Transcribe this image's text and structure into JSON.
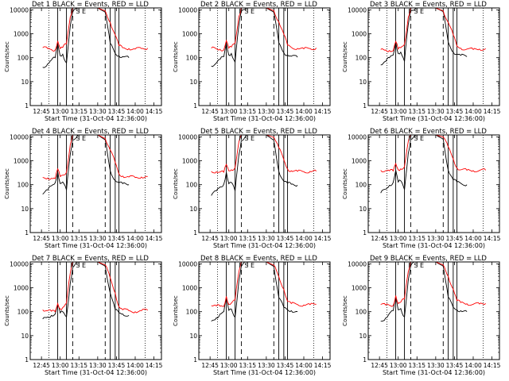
{
  "colors": {
    "events": "#000000",
    "lld": "#ff0000",
    "frame": "#000000"
  },
  "shared": {
    "ylabel": "Counts/sec",
    "xlabel": "Start Time (31-Oct-04 12:36:00)",
    "x_tick_labels": [
      "12:45",
      "13:00",
      "13:15",
      "13:30",
      "13:45",
      "14:00",
      "14:15"
    ],
    "y_tick_labels": [
      "1",
      "10",
      "100",
      "1000",
      "10000"
    ],
    "marker_letters": "F S E"
  },
  "chart_data": [
    {
      "type": "line",
      "scale_y": "log",
      "grid": false,
      "title": "Det 1 BLACK = Events, RED = LLD",
      "x_range": [
        "12:36",
        "14:21"
      ],
      "ylim": [
        1,
        12000
      ],
      "x": [
        "12:46",
        "12:50",
        "12:53",
        "12:56",
        "12:58",
        "13:00",
        "13:02",
        "13:05",
        "13:08",
        "13:10",
        "13:14",
        "13:20",
        "13:30",
        "13:36",
        "13:40",
        "13:44",
        "13:47",
        "13:50",
        "13:55",
        "14:00",
        "14:05",
        "14:10"
      ],
      "series": [
        {
          "name": "Events",
          "values": [
            40,
            55,
            80,
            100,
            380,
            120,
            140,
            60,
            2000,
            8000,
            12000,
            12000,
            12000,
            8000,
            400,
            150,
            120,
            110,
            100,
            null,
            null,
            null
          ]
        },
        {
          "name": "LLD",
          "values": [
            260,
            240,
            220,
            210,
            500,
            240,
            270,
            380,
            5000,
            12000,
            12000,
            12000,
            12000,
            9000,
            3000,
            900,
            320,
            260,
            240,
            230,
            240,
            250
          ]
        }
      ],
      "vlines_solid": [
        "12:58",
        "13:05",
        "13:40",
        "13:44",
        "13:47"
      ],
      "vlines_dashed": [
        "13:10",
        "13:36"
      ],
      "vlines_dotted": [
        "12:51",
        "14:08"
      ]
    },
    {
      "type": "line",
      "scale_y": "log",
      "grid": false,
      "title": "Det 2 BLACK = Events, RED = LLD",
      "x_range": [
        "12:36",
        "14:21"
      ],
      "ylim": [
        1,
        12000
      ],
      "x": [
        "12:46",
        "12:50",
        "12:53",
        "12:56",
        "12:58",
        "13:00",
        "13:02",
        "13:05",
        "13:08",
        "13:10",
        "13:14",
        "13:20",
        "13:30",
        "13:36",
        "13:40",
        "13:44",
        "13:47",
        "13:50",
        "13:55",
        "14:00",
        "14:05",
        "14:10"
      ],
      "series": [
        {
          "name": "Events",
          "values": [
            45,
            60,
            85,
            110,
            420,
            130,
            150,
            65,
            2200,
            8500,
            12000,
            12000,
            12000,
            8000,
            420,
            160,
            130,
            115,
            105,
            null,
            null,
            null
          ]
        },
        {
          "name": "LLD",
          "values": [
            250,
            235,
            225,
            215,
            520,
            250,
            280,
            400,
            5200,
            12000,
            12000,
            12000,
            12000,
            9200,
            3200,
            950,
            330,
            270,
            245,
            235,
            240,
            255
          ]
        }
      ],
      "vlines_solid": [
        "12:58",
        "13:05",
        "13:40",
        "13:44",
        "13:47"
      ],
      "vlines_dashed": [
        "13:10",
        "13:36"
      ],
      "vlines_dotted": [
        "12:51",
        "14:08"
      ]
    },
    {
      "type": "line",
      "scale_y": "log",
      "grid": false,
      "title": "Det 3 BLACK = Events, RED = LLD",
      "x_range": [
        "12:36",
        "14:21"
      ],
      "ylim": [
        1,
        12000
      ],
      "x": [
        "12:46",
        "12:50",
        "12:53",
        "12:56",
        "12:58",
        "13:00",
        "13:02",
        "13:05",
        "13:08",
        "13:10",
        "13:14",
        "13:20",
        "13:30",
        "13:36",
        "13:40",
        "13:44",
        "13:47",
        "13:50",
        "13:55",
        "14:00",
        "14:05",
        "14:10"
      ],
      "series": [
        {
          "name": "Events",
          "values": [
            50,
            70,
            100,
            130,
            450,
            150,
            170,
            70,
            2400,
            9000,
            12000,
            12000,
            12000,
            8500,
            450,
            170,
            140,
            125,
            110,
            null,
            null,
            null
          ]
        },
        {
          "name": "LLD",
          "values": [
            220,
            210,
            200,
            195,
            480,
            230,
            260,
            360,
            4800,
            12000,
            12000,
            12000,
            12000,
            9000,
            3000,
            900,
            300,
            250,
            230,
            220,
            230,
            240
          ]
        }
      ],
      "vlines_solid": [
        "12:58",
        "13:05",
        "13:40",
        "13:44",
        "13:47"
      ],
      "vlines_dashed": [
        "13:10",
        "13:36"
      ],
      "vlines_dotted": [
        "12:51",
        "14:08"
      ]
    },
    {
      "type": "line",
      "scale_y": "log",
      "grid": false,
      "title": "Det 4 BLACK = Events, RED = LLD",
      "x_range": [
        "12:36",
        "14:21"
      ],
      "ylim": [
        1,
        12000
      ],
      "x": [
        "12:46",
        "12:50",
        "12:53",
        "12:56",
        "12:58",
        "13:00",
        "13:02",
        "13:05",
        "13:08",
        "13:10",
        "13:14",
        "13:20",
        "13:30",
        "13:36",
        "13:40",
        "13:44",
        "13:47",
        "13:50",
        "13:55",
        "14:00",
        "14:05",
        "14:10"
      ],
      "series": [
        {
          "name": "Events",
          "values": [
            40,
            60,
            90,
            120,
            350,
            110,
            130,
            60,
            1800,
            7500,
            12000,
            12000,
            12000,
            7500,
            380,
            150,
            120,
            110,
            100,
            null,
            null,
            null
          ]
        },
        {
          "name": "LLD",
          "values": [
            200,
            190,
            185,
            180,
            460,
            220,
            250,
            330,
            4600,
            12000,
            12000,
            12000,
            12000,
            8500,
            2800,
            850,
            280,
            230,
            210,
            200,
            210,
            220
          ]
        }
      ],
      "vlines_solid": [
        "12:58",
        "13:05",
        "13:40",
        "13:44",
        "13:47"
      ],
      "vlines_dashed": [
        "13:10",
        "13:36"
      ],
      "vlines_dotted": [
        "12:51",
        "14:08"
      ]
    },
    {
      "type": "line",
      "scale_y": "log",
      "grid": false,
      "title": "Det 5 BLACK = Events, RED = LLD",
      "x_range": [
        "12:36",
        "14:21"
      ],
      "ylim": [
        1,
        12000
      ],
      "x": [
        "12:46",
        "12:50",
        "12:53",
        "12:56",
        "12:58",
        "13:00",
        "13:02",
        "13:05",
        "13:08",
        "13:10",
        "13:14",
        "13:20",
        "13:30",
        "13:36",
        "13:40",
        "13:44",
        "13:47",
        "13:50",
        "13:55",
        "14:00",
        "14:05",
        "14:10"
      ],
      "series": [
        {
          "name": "Events",
          "values": [
            35,
            55,
            80,
            105,
            330,
            110,
            125,
            55,
            1700,
            7000,
            12000,
            12000,
            12000,
            7200,
            360,
            140,
            115,
            105,
            95,
            null,
            null,
            null
          ]
        },
        {
          "name": "LLD",
          "values": [
            360,
            350,
            340,
            335,
            700,
            380,
            420,
            520,
            6000,
            12000,
            12000,
            12000,
            12000,
            9500,
            3500,
            1100,
            450,
            380,
            360,
            350,
            360,
            370
          ]
        }
      ],
      "vlines_solid": [
        "12:58",
        "13:05",
        "13:40",
        "13:44",
        "13:47"
      ],
      "vlines_dashed": [
        "13:10",
        "13:36"
      ],
      "vlines_dotted": [
        "12:51",
        "14:08"
      ]
    },
    {
      "type": "line",
      "scale_y": "log",
      "grid": false,
      "title": "Det 6 BLACK = Events, RED = LLD",
      "x_range": [
        "12:36",
        "14:21"
      ],
      "ylim": [
        1,
        12000
      ],
      "x": [
        "12:46",
        "12:50",
        "12:53",
        "12:56",
        "12:58",
        "13:00",
        "13:02",
        "13:05",
        "13:08",
        "13:10",
        "13:14",
        "13:20",
        "13:30",
        "13:36",
        "13:40",
        "13:44",
        "13:47",
        "13:50",
        "13:55",
        "14:00",
        "14:05",
        "14:10"
      ],
      "series": [
        {
          "name": "Events",
          "values": [
            45,
            65,
            95,
            125,
            400,
            130,
            145,
            62,
            2000,
            8000,
            12000,
            12000,
            12000,
            8000,
            400,
            160,
            130,
            115,
            100,
            null,
            null,
            null
          ]
        },
        {
          "name": "LLD",
          "values": [
            400,
            390,
            380,
            375,
            760,
            420,
            460,
            560,
            6200,
            12000,
            12000,
            12000,
            12000,
            9800,
            3800,
            1200,
            500,
            420,
            400,
            390,
            395,
            405
          ]
        }
      ],
      "vlines_solid": [
        "12:58",
        "13:05",
        "13:40",
        "13:44",
        "13:47"
      ],
      "vlines_dashed": [
        "13:10",
        "13:36"
      ],
      "vlines_dotted": [
        "12:51",
        "14:08"
      ]
    },
    {
      "type": "line",
      "scale_y": "log",
      "grid": false,
      "title": "Det 7 BLACK = Events, RED = LLD",
      "x_range": [
        "12:36",
        "14:21"
      ],
      "ylim": [
        1,
        12000
      ],
      "x": [
        "12:46",
        "12:50",
        "12:53",
        "12:56",
        "12:58",
        "13:00",
        "13:02",
        "13:05",
        "13:08",
        "13:10",
        "13:14",
        "13:20",
        "13:30",
        "13:36",
        "13:40",
        "13:44",
        "13:47",
        "13:50",
        "13:55",
        "14:00",
        "14:05",
        "14:10"
      ],
      "series": [
        {
          "name": "Events",
          "values": [
            50,
            60,
            70,
            80,
            200,
            90,
            100,
            60,
            1500,
            7000,
            12000,
            12000,
            12000,
            8000,
            600,
            120,
            90,
            80,
            70,
            null,
            null,
            null
          ]
        },
        {
          "name": "LLD",
          "values": [
            120,
            110,
            105,
            100,
            220,
            130,
            150,
            230,
            4000,
            12000,
            12000,
            12000,
            12000,
            9000,
            2600,
            600,
            160,
            120,
            110,
            100,
            110,
            115
          ]
        }
      ],
      "vlines_solid": [
        "12:58",
        "13:05",
        "13:40",
        "13:44",
        "13:47"
      ],
      "vlines_dashed": [
        "13:10",
        "13:36"
      ],
      "vlines_dotted": [
        "12:51",
        "14:08"
      ]
    },
    {
      "type": "line",
      "scale_y": "log",
      "grid": false,
      "title": "Det 8 BLACK = Events, RED = LLD",
      "x_range": [
        "12:36",
        "14:21"
      ],
      "ylim": [
        1,
        12000
      ],
      "x": [
        "12:46",
        "12:50",
        "12:53",
        "12:56",
        "12:58",
        "13:00",
        "13:02",
        "13:05",
        "13:08",
        "13:10",
        "13:14",
        "13:20",
        "13:30",
        "13:36",
        "13:40",
        "13:44",
        "13:47",
        "13:50",
        "13:55",
        "14:00",
        "14:05",
        "14:10"
      ],
      "series": [
        {
          "name": "Events",
          "values": [
            40,
            55,
            80,
            100,
            360,
            115,
            130,
            58,
            1900,
            7800,
            12000,
            12000,
            12000,
            7800,
            390,
            150,
            120,
            110,
            100,
            null,
            null,
            null
          ]
        },
        {
          "name": "LLD",
          "values": [
            180,
            175,
            170,
            165,
            440,
            200,
            230,
            310,
            4500,
            12000,
            12000,
            12000,
            12000,
            8800,
            2900,
            870,
            270,
            220,
            200,
            190,
            195,
            205
          ]
        }
      ],
      "vlines_solid": [
        "12:58",
        "13:05",
        "13:40",
        "13:44",
        "13:47"
      ],
      "vlines_dashed": [
        "13:10",
        "13:36"
      ],
      "vlines_dotted": [
        "12:51",
        "14:08"
      ]
    },
    {
      "type": "line",
      "scale_y": "log",
      "grid": false,
      "title": "Det 9 BLACK = Events, RED = LLD",
      "x_range": [
        "12:36",
        "14:21"
      ],
      "ylim": [
        1,
        12000
      ],
      "x": [
        "12:46",
        "12:50",
        "12:53",
        "12:56",
        "12:58",
        "13:00",
        "13:02",
        "13:05",
        "13:08",
        "13:10",
        "13:14",
        "13:20",
        "13:30",
        "13:36",
        "13:40",
        "13:44",
        "13:47",
        "13:50",
        "13:55",
        "14:00",
        "14:05",
        "14:10"
      ],
      "series": [
        {
          "name": "Events",
          "values": [
            40,
            55,
            85,
            110,
            380,
            120,
            135,
            60,
            2000,
            8200,
            12000,
            12000,
            12000,
            8000,
            400,
            150,
            120,
            110,
            100,
            null,
            null,
            null
          ]
        },
        {
          "name": "LLD",
          "values": [
            200,
            190,
            185,
            180,
            470,
            220,
            250,
            340,
            4700,
            12000,
            12000,
            12000,
            12000,
            9000,
            3000,
            880,
            290,
            240,
            215,
            205,
            210,
            220
          ]
        }
      ],
      "vlines_solid": [
        "12:58",
        "13:05",
        "13:40",
        "13:44",
        "13:47"
      ],
      "vlines_dashed": [
        "13:10",
        "13:36"
      ],
      "vlines_dotted": [
        "12:51",
        "14:08"
      ]
    }
  ]
}
